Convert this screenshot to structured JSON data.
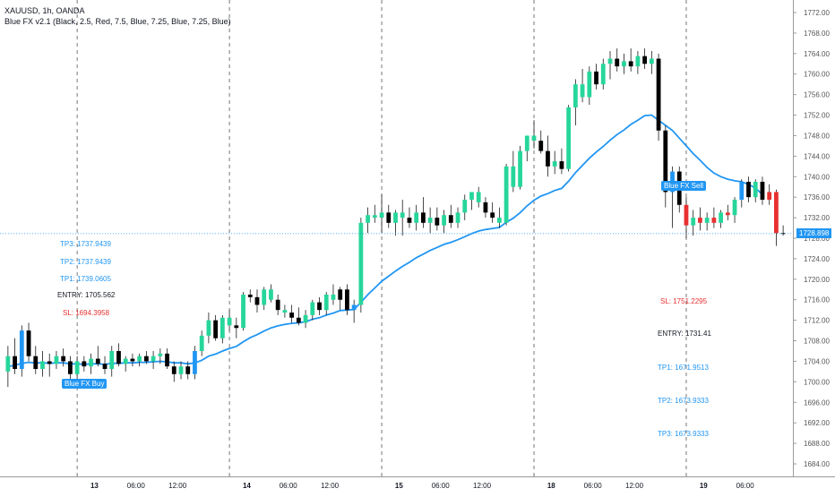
{
  "header": {
    "symbol": "XAUUSD, 1h, OANDA",
    "indicator": "Blue FX v2.1 (Black, 2.5, Red, 7.5, Blue, 7.25, Blue, 7.25, Blue)"
  },
  "colors": {
    "bull": "#26d69a",
    "bear_red": "#e83030",
    "bear_black": "#000000",
    "signal_blue": "#2196f3",
    "ma_line": "#2196f3",
    "grid_dashed": "#555555",
    "axis_text": "#555555"
  },
  "buy_signal": {
    "tag": "Blue FX Buy",
    "tp3": "TP3: 1737.9439",
    "tp2": "TP2: 1737.9439",
    "tp1": "TP1: 1739.0605",
    "entry": "ENTRY: 1705.562",
    "sl": "SL: 1694.3958"
  },
  "sell_signal": {
    "tag": "Blue FX Sell",
    "sl": "SL: 1751.2295",
    "entry": "ENTRY: 1731.41",
    "tp1": "TP1: 1671.9513",
    "tp2": "TP2: 1673.9333",
    "tp3": "TP3: 1673.9333"
  },
  "last_price": "1728.898",
  "chart_data": {
    "type": "candlestick",
    "title": "XAUUSD, 1h, OANDA",
    "ylim": [
      1681,
      1775
    ],
    "y_ticks": [
      1684,
      1688,
      1692,
      1696,
      1700,
      1704,
      1708,
      1712,
      1716,
      1720,
      1724,
      1728,
      1732,
      1736,
      1740,
      1744,
      1748,
      1752,
      1756,
      1760,
      1764,
      1768,
      1772
    ],
    "x_ticks": [
      {
        "label": "13",
        "bar": 13
      },
      {
        "label": "06:00",
        "bar": 19
      },
      {
        "label": "12:00",
        "bar": 25
      },
      {
        "label": "14",
        "bar": 35
      },
      {
        "label": "06:00",
        "bar": 41
      },
      {
        "label": "12:00",
        "bar": 47
      },
      {
        "label": "15",
        "bar": 57
      },
      {
        "label": "06:00",
        "bar": 63
      },
      {
        "label": "12:00",
        "bar": 69
      },
      {
        "label": "18",
        "bar": 79
      },
      {
        "label": "06:00",
        "bar": 85
      },
      {
        "label": "12:00",
        "bar": 91
      },
      {
        "label": "19",
        "bar": 101
      },
      {
        "label": "06:00",
        "bar": 107
      }
    ],
    "day_separators": [
      10,
      32,
      54,
      76,
      98
    ],
    "candles": [
      [
        1702.0,
        1707.0,
        1699.0,
        1705.0,
        "bull"
      ],
      [
        1705.0,
        1708.5,
        1701.5,
        1702.5,
        "black"
      ],
      [
        1702.5,
        1711.0,
        1701.0,
        1710.0,
        "blue"
      ],
      [
        1710.0,
        1711.5,
        1704.0,
        1705.0,
        "black"
      ],
      [
        1705.0,
        1707.0,
        1701.5,
        1702.5,
        "black"
      ],
      [
        1702.5,
        1706.0,
        1701.0,
        1704.0,
        "bull"
      ],
      [
        1704.0,
        1705.5,
        1701.0,
        1703.5,
        "black"
      ],
      [
        1703.5,
        1706.0,
        1702.5,
        1705.0,
        "bull"
      ],
      [
        1705.0,
        1706.5,
        1703.0,
        1704.0,
        "black"
      ],
      [
        1704.0,
        1705.0,
        1700.0,
        1701.5,
        "black"
      ],
      [
        1701.5,
        1705.0,
        1700.0,
        1704.0,
        "bull"
      ],
      [
        1704.0,
        1705.0,
        1702.0,
        1703.0,
        "black"
      ],
      [
        1703.0,
        1705.5,
        1701.5,
        1704.5,
        "bull"
      ],
      [
        1704.5,
        1707.0,
        1703.0,
        1703.5,
        "black"
      ],
      [
        1703.5,
        1705.0,
        1701.5,
        1702.5,
        "black"
      ],
      [
        1702.5,
        1707.0,
        1701.0,
        1706.0,
        "bull"
      ],
      [
        1706.0,
        1707.5,
        1703.0,
        1703.5,
        "black"
      ],
      [
        1703.5,
        1705.0,
        1702.0,
        1704.5,
        "bull"
      ],
      [
        1704.5,
        1705.5,
        1703.0,
        1704.0,
        "black"
      ],
      [
        1704.0,
        1705.5,
        1703.0,
        1705.0,
        "bull"
      ],
      [
        1705.0,
        1706.0,
        1703.5,
        1704.0,
        "black"
      ],
      [
        1704.0,
        1706.0,
        1702.5,
        1705.0,
        "bull"
      ],
      [
        1705.0,
        1706.5,
        1703.5,
        1705.5,
        "bull"
      ],
      [
        1705.5,
        1706.5,
        1702.5,
        1703.0,
        "black"
      ],
      [
        1703.0,
        1704.0,
        1700.0,
        1701.5,
        "black"
      ],
      [
        1701.5,
        1704.0,
        1700.5,
        1703.0,
        "bull"
      ],
      [
        1703.0,
        1704.0,
        1700.5,
        1701.5,
        "black"
      ],
      [
        1701.5,
        1707.0,
        1700.5,
        1706.0,
        "blue"
      ],
      [
        1706.0,
        1710.0,
        1705.0,
        1709.0,
        "bull"
      ],
      [
        1709.0,
        1713.5,
        1707.5,
        1712.0,
        "bull"
      ],
      [
        1712.0,
        1713.0,
        1708.0,
        1708.5,
        "black"
      ],
      [
        1708.5,
        1713.0,
        1707.5,
        1712.5,
        "bull"
      ],
      [
        1712.5,
        1714.0,
        1710.0,
        1711.0,
        "bull"
      ],
      [
        1711.0,
        1712.5,
        1708.5,
        1710.5,
        "black"
      ],
      [
        1710.5,
        1717.5,
        1710.0,
        1717.0,
        "bull"
      ],
      [
        1717.0,
        1718.0,
        1715.5,
        1716.5,
        "black"
      ],
      [
        1716.5,
        1718.0,
        1713.5,
        1715.0,
        "black"
      ],
      [
        1715.0,
        1718.5,
        1714.0,
        1718.0,
        "bull"
      ],
      [
        1718.0,
        1719.0,
        1715.5,
        1716.0,
        "bull"
      ],
      [
        1716.0,
        1717.0,
        1713.0,
        1714.0,
        "black"
      ],
      [
        1714.0,
        1715.0,
        1712.5,
        1713.5,
        "bull"
      ],
      [
        1713.5,
        1715.0,
        1711.5,
        1712.5,
        "black"
      ],
      [
        1712.5,
        1714.5,
        1711.0,
        1711.5,
        "black"
      ],
      [
        1711.5,
        1714.0,
        1710.5,
        1713.0,
        "bull"
      ],
      [
        1713.0,
        1716.0,
        1712.0,
        1715.5,
        "bull"
      ],
      [
        1715.5,
        1716.5,
        1713.0,
        1714.0,
        "black"
      ],
      [
        1714.0,
        1717.5,
        1713.0,
        1717.0,
        "bull"
      ],
      [
        1717.0,
        1719.0,
        1715.0,
        1716.0,
        "bull"
      ],
      [
        1716.0,
        1718.5,
        1714.0,
        1718.0,
        "black"
      ],
      [
        1718.0,
        1719.0,
        1713.0,
        1714.0,
        "black"
      ],
      [
        1714.0,
        1716.0,
        1711.5,
        1715.0,
        "blue"
      ],
      [
        1715.0,
        1732.0,
        1713.5,
        1731.0,
        "bull"
      ],
      [
        1731.0,
        1734.0,
        1729.0,
        1732.5,
        "bull"
      ],
      [
        1732.5,
        1734.5,
        1731.0,
        1732.0,
        "bull"
      ],
      [
        1732.0,
        1736.5,
        1729.0,
        1733.0,
        "bull"
      ],
      [
        1733.0,
        1734.5,
        1730.0,
        1731.0,
        "black"
      ],
      [
        1731.0,
        1733.5,
        1728.5,
        1733.0,
        "bull"
      ],
      [
        1733.0,
        1735.5,
        1728.5,
        1732.0,
        "bull"
      ],
      [
        1732.0,
        1734.0,
        1730.0,
        1731.0,
        "black"
      ],
      [
        1731.0,
        1734.5,
        1729.5,
        1733.0,
        "bull"
      ],
      [
        1733.0,
        1736.0,
        1730.0,
        1731.0,
        "black"
      ],
      [
        1731.0,
        1734.0,
        1729.0,
        1732.0,
        "bull"
      ],
      [
        1732.0,
        1734.0,
        1729.5,
        1730.5,
        "black"
      ],
      [
        1730.5,
        1733.5,
        1729.0,
        1732.5,
        "bull"
      ],
      [
        1732.5,
        1734.5,
        1730.0,
        1731.0,
        "black"
      ],
      [
        1731.0,
        1734.0,
        1730.0,
        1733.0,
        "bull"
      ],
      [
        1733.0,
        1736.5,
        1731.5,
        1735.5,
        "bull"
      ],
      [
        1735.5,
        1737.0,
        1733.5,
        1737.0,
        "bull"
      ],
      [
        1737.0,
        1738.0,
        1734.0,
        1735.0,
        "bull"
      ],
      [
        1735.0,
        1736.0,
        1732.0,
        1733.0,
        "black"
      ],
      [
        1733.0,
        1735.0,
        1731.0,
        1732.0,
        "black"
      ],
      [
        1732.0,
        1734.0,
        1730.0,
        1731.0,
        "bull"
      ],
      [
        1731.0,
        1742.5,
        1730.5,
        1742.0,
        "bull"
      ],
      [
        1742.0,
        1745.0,
        1737.0,
        1738.0,
        "bull"
      ],
      [
        1738.0,
        1746.0,
        1737.5,
        1745.0,
        "bull"
      ],
      [
        1745.0,
        1748.0,
        1743.0,
        1748.0,
        "bull"
      ],
      [
        1748.0,
        1751.0,
        1745.5,
        1747.0,
        "bull"
      ],
      [
        1747.0,
        1749.0,
        1744.5,
        1745.0,
        "black"
      ],
      [
        1745.0,
        1748.0,
        1740.0,
        1742.0,
        "black"
      ],
      [
        1742.0,
        1745.0,
        1740.5,
        1743.0,
        "bull"
      ],
      [
        1743.0,
        1745.5,
        1740.5,
        1741.5,
        "black"
      ],
      [
        1741.5,
        1754.0,
        1741.0,
        1753.5,
        "bull"
      ],
      [
        1753.5,
        1759.0,
        1750.0,
        1758.0,
        "bull"
      ],
      [
        1758.0,
        1761.0,
        1754.5,
        1755.5,
        "bull"
      ],
      [
        1755.5,
        1761.5,
        1754.0,
        1760.5,
        "bull"
      ],
      [
        1760.5,
        1762.0,
        1757.0,
        1758.0,
        "black"
      ],
      [
        1758.0,
        1763.0,
        1757.0,
        1762.0,
        "bull"
      ],
      [
        1762.0,
        1764.5,
        1759.0,
        1763.0,
        "bull"
      ],
      [
        1763.0,
        1765.0,
        1760.5,
        1761.5,
        "black"
      ],
      [
        1761.5,
        1764.0,
        1760.0,
        1762.5,
        "bull"
      ],
      [
        1762.5,
        1765.0,
        1760.5,
        1761.5,
        "black"
      ],
      [
        1761.5,
        1764.5,
        1760.0,
        1763.5,
        "bull"
      ],
      [
        1763.5,
        1765.0,
        1761.0,
        1762.0,
        "black"
      ],
      [
        1762.0,
        1764.5,
        1760.0,
        1763.0,
        "bull"
      ],
      [
        1763.0,
        1764.0,
        1747.0,
        1749.0,
        "black"
      ],
      [
        1749.0,
        1750.0,
        1734.0,
        1737.0,
        "black"
      ],
      [
        1737.0,
        1742.0,
        1730.0,
        1741.0,
        "blue"
      ],
      [
        1741.0,
        1742.0,
        1733.0,
        1734.5,
        "black"
      ],
      [
        1734.5,
        1736.0,
        1728.0,
        1730.5,
        "red"
      ],
      [
        1730.5,
        1733.5,
        1728.5,
        1732.0,
        "bull"
      ],
      [
        1732.0,
        1734.0,
        1729.5,
        1731.0,
        "red"
      ],
      [
        1731.0,
        1733.0,
        1729.5,
        1732.0,
        "bull"
      ],
      [
        1732.0,
        1734.0,
        1730.0,
        1731.0,
        "red"
      ],
      [
        1731.0,
        1733.5,
        1730.0,
        1733.0,
        "bull"
      ],
      [
        1733.0,
        1734.5,
        1731.5,
        1732.5,
        "red"
      ],
      [
        1732.5,
        1736.0,
        1731.0,
        1735.5,
        "bull"
      ],
      [
        1735.5,
        1739.5,
        1734.0,
        1739.0,
        "blue"
      ],
      [
        1739.0,
        1740.0,
        1735.0,
        1736.0,
        "black"
      ],
      [
        1736.0,
        1739.5,
        1735.0,
        1739.0,
        "bull"
      ],
      [
        1739.0,
        1740.0,
        1734.5,
        1735.5,
        "black"
      ],
      [
        1735.5,
        1738.5,
        1734.5,
        1737.0,
        "red"
      ],
      [
        1737.0,
        1737.5,
        1726.5,
        1729.0,
        "red"
      ],
      [
        1729.0,
        1730.5,
        1728.5,
        1728.9,
        "black"
      ]
    ],
    "series": [
      {
        "values": [
          1703.0,
          1703.2,
          1703.6,
          1703.8,
          1703.7,
          1703.7,
          1703.6,
          1703.7,
          1703.7,
          1703.5,
          1703.5,
          1703.4,
          1703.5,
          1703.5,
          1703.4,
          1703.6,
          1703.6,
          1703.7,
          1703.7,
          1703.8,
          1703.8,
          1703.9,
          1704.0,
          1703.9,
          1703.7,
          1703.7,
          1703.5,
          1703.7,
          1704.2,
          1705.0,
          1705.4,
          1706.0,
          1706.5,
          1706.9,
          1707.8,
          1708.6,
          1709.2,
          1709.9,
          1710.5,
          1710.9,
          1711.2,
          1711.4,
          1711.5,
          1711.7,
          1712.2,
          1712.5,
          1713.0,
          1713.4,
          1713.9,
          1714.0,
          1714.1,
          1715.5,
          1717.0,
          1718.3,
          1719.6,
          1720.6,
          1721.6,
          1722.5,
          1723.3,
          1724.2,
          1724.9,
          1725.6,
          1726.2,
          1726.8,
          1727.2,
          1727.7,
          1728.3,
          1728.9,
          1729.4,
          1729.7,
          1729.9,
          1730.1,
          1731.1,
          1731.9,
          1733.0,
          1734.3,
          1735.4,
          1736.2,
          1736.7,
          1737.3,
          1737.7,
          1739.1,
          1740.8,
          1742.2,
          1743.6,
          1744.8,
          1745.9,
          1747.1,
          1748.2,
          1749.1,
          1750.2,
          1751.0,
          1751.9,
          1752.0,
          1751.0,
          1750.0,
          1749.0,
          1747.5,
          1746.0,
          1744.5,
          1743.2,
          1741.8,
          1740.7,
          1740.0,
          1739.5,
          1739.2,
          1739.0,
          1738.5,
          1737.8,
          1736.5
        ]
      }
    ]
  }
}
